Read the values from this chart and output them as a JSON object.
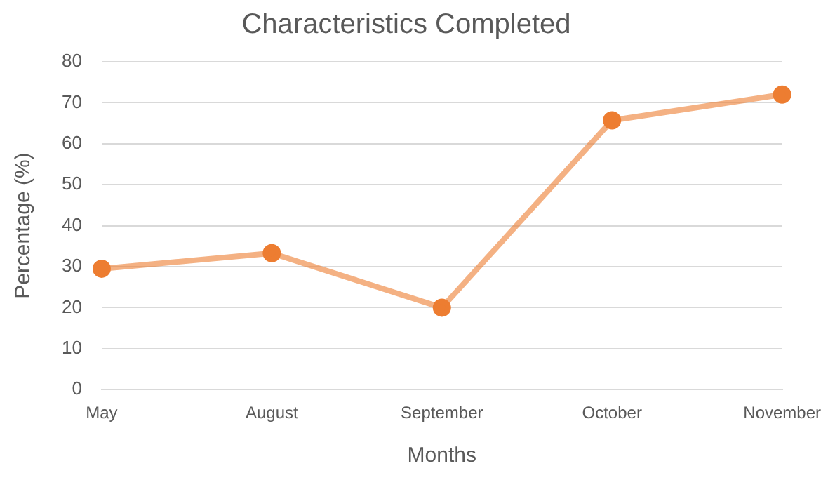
{
  "chart_data": {
    "type": "line",
    "title": "Characteristics Completed",
    "xlabel": "Months",
    "ylabel": "Percentage (%)",
    "categories": [
      "May",
      "August",
      "September",
      "October",
      "November"
    ],
    "series": [
      {
        "color": "#ed7d31",
        "values": [
          29.5,
          33.3,
          20,
          65.7,
          72
        ]
      }
    ],
    "ylim": [
      0,
      80
    ],
    "yticks": [
      0,
      10,
      20,
      30,
      40,
      50,
      60,
      70,
      80
    ],
    "grid": "y",
    "legend": false,
    "marker": "circle",
    "line_style": "solid"
  }
}
